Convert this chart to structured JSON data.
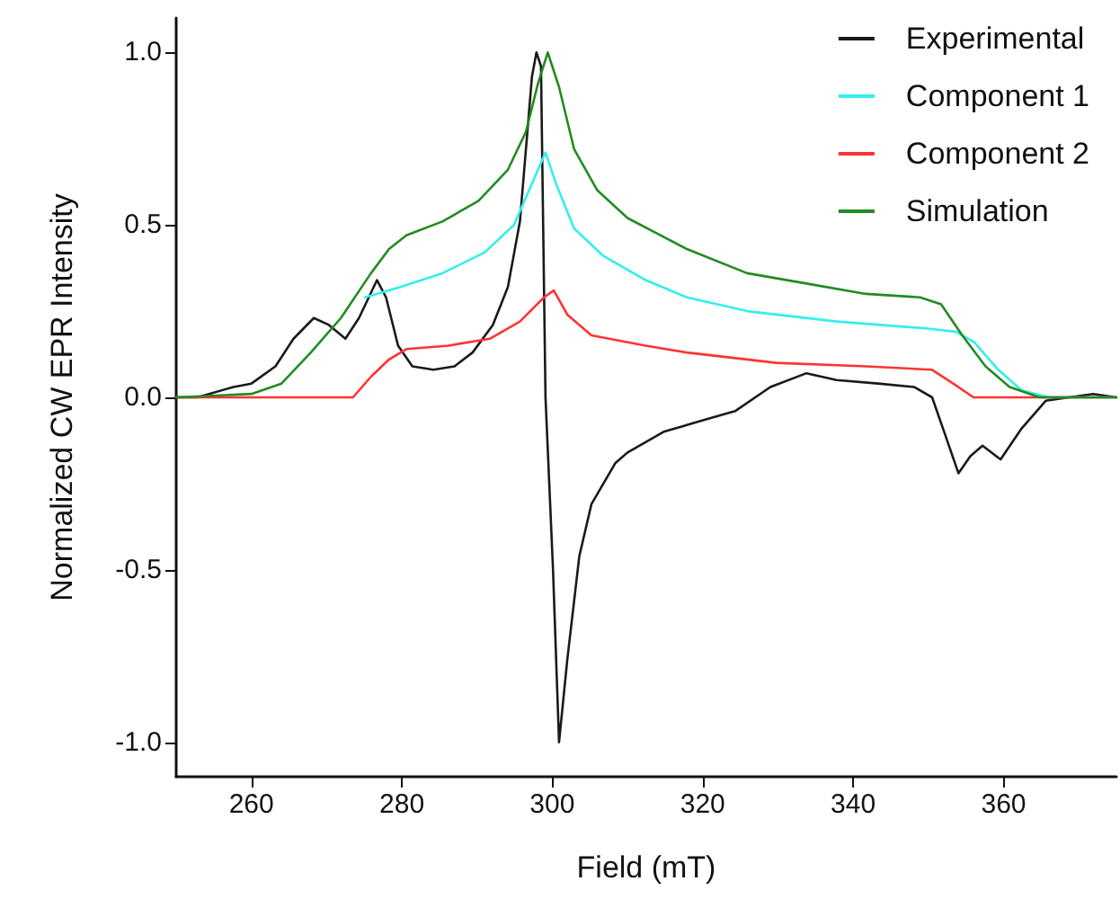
{
  "chart_data": {
    "type": "line",
    "xlabel": "Field (mT)",
    "ylabel": "Normalized CW EPR Intensity",
    "xlim": [
      250,
      375
    ],
    "ylim": [
      -1.1,
      1.1
    ],
    "xticks": [
      260,
      280,
      300,
      320,
      340,
      360
    ],
    "yticks": [
      {
        "value": -1,
        "label": "-1.0"
      },
      {
        "value": -0.5,
        "label": "-0.5"
      },
      {
        "value": 0,
        "label": "0.0"
      },
      {
        "value": 0.5,
        "label": "0.5"
      },
      {
        "value": 1,
        "label": "1.0"
      }
    ],
    "grid": false,
    "legend": "top right",
    "marker": "none",
    "line_style": "solid",
    "series": [
      {
        "name": "Experimental",
        "color": "#1a1a1a",
        "x": [
          250,
          252.8,
          257.6,
          260,
          263.2,
          265.6,
          268.3,
          270.3,
          272.5,
          274.3,
          276.7,
          277.9,
          279.5,
          281.4,
          284.2,
          287,
          289.4,
          292.1,
          294.1,
          295.7,
          296.5,
          297.3,
          297.9,
          298.5,
          299.1,
          300.1,
          300.9,
          302,
          303.6,
          305.2,
          308.4,
          310,
          314.8,
          319.5,
          324.3,
          329,
          333.8,
          337.8,
          343.3,
          348.1,
          350.5,
          352.1,
          354,
          355.6,
          357.2,
          359.6,
          362.4,
          365.6,
          368.7,
          371.9,
          375
        ],
        "values": [
          0,
          0,
          0.03,
          0.04,
          0.09,
          0.17,
          0.23,
          0.21,
          0.17,
          0.23,
          0.34,
          0.29,
          0.15,
          0.09,
          0.08,
          0.09,
          0.13,
          0.21,
          0.32,
          0.51,
          0.72,
          0.93,
          1.0,
          0.96,
          0,
          -0.5,
          -1.0,
          -0.76,
          -0.46,
          -0.31,
          -0.19,
          -0.16,
          -0.1,
          -0.07,
          -0.04,
          0.03,
          0.07,
          0.05,
          0.04,
          0.03,
          0,
          -0.1,
          -0.22,
          -0.17,
          -0.14,
          -0.18,
          -0.09,
          -0.01,
          0,
          0.01,
          0
        ]
      },
      {
        "name": "Component 1",
        "color": "#33eeee",
        "x": [
          275.1,
          279.8,
          285.4,
          291,
          294.9,
          297.3,
          299.1,
          300.5,
          302.9,
          306.8,
          312.4,
          317.9,
          325.9,
          337.8,
          349.7,
          353.7,
          356.1,
          359.3,
          362.4,
          366,
          375
        ],
        "values": [
          0.29,
          0.32,
          0.36,
          0.42,
          0.5,
          0.62,
          0.71,
          0.62,
          0.49,
          0.41,
          0.34,
          0.29,
          0.25,
          0.22,
          0.2,
          0.19,
          0.16,
          0.08,
          0.02,
          0,
          0
        ]
      },
      {
        "name": "Component 2",
        "color": "#ff3333",
        "x": [
          250,
          273.5,
          275.9,
          278.3,
          280.6,
          286.2,
          291.7,
          295.7,
          298.9,
          300.2,
          302,
          305.2,
          312.4,
          317.9,
          329.8,
          341.7,
          350.5,
          353.3,
          356,
          375
        ],
        "values": [
          0,
          0,
          0.06,
          0.11,
          0.14,
          0.15,
          0.17,
          0.22,
          0.29,
          0.31,
          0.24,
          0.18,
          0.15,
          0.13,
          0.1,
          0.09,
          0.08,
          0.04,
          0,
          0
        ]
      },
      {
        "name": "Simulation",
        "color": "#228b22",
        "x": [
          250,
          260,
          264,
          267.9,
          271.9,
          275.9,
          278.3,
          280.6,
          285.4,
          290.2,
          294.1,
          296.5,
          298.1,
          299.4,
          300.9,
          302.9,
          306,
          310,
          317.9,
          325.9,
          333.8,
          341.7,
          348.9,
          351.7,
          354.5,
          357.6,
          360.8,
          364.8,
          375
        ],
        "values": [
          0,
          0.01,
          0.04,
          0.13,
          0.23,
          0.36,
          0.43,
          0.47,
          0.51,
          0.57,
          0.66,
          0.77,
          0.91,
          1.0,
          0.9,
          0.72,
          0.6,
          0.52,
          0.43,
          0.36,
          0.33,
          0.3,
          0.29,
          0.27,
          0.18,
          0.09,
          0.03,
          0,
          0
        ]
      }
    ]
  }
}
